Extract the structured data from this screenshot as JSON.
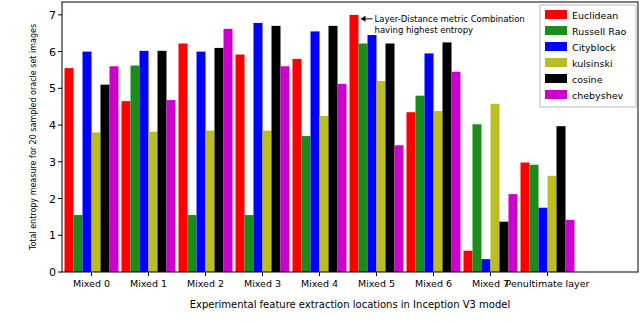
{
  "chart_data": {
    "type": "bar",
    "y_label": "Total entropy measure for 20 sampled oracle set images",
    "x_label": "Experimental feature extraction locations in Inception V3 model",
    "annotations": [
      "Layer-Distance metric Combination",
      "having highest entropy"
    ],
    "categories": [
      "Mixed 0",
      "Mixed 1",
      "Mixed 2",
      "Mixed 3",
      "Mixed 4",
      "Mixed 5",
      "Mixed 6",
      "Mixed 7",
      "Penultimate layer"
    ],
    "series": [
      {
        "name": "Euclidean",
        "color": "#ff0000",
        "values": [
          5.55,
          4.65,
          6.22,
          5.92,
          5.8,
          7.0,
          4.35,
          0.58,
          2.98
        ]
      },
      {
        "name": "Russell Rao",
        "color": "#1a8c1a",
        "values": [
          1.55,
          5.62,
          1.55,
          1.55,
          3.7,
          6.22,
          4.8,
          4.02,
          2.92
        ]
      },
      {
        "name": "Cityblock",
        "color": "#0000ff",
        "values": [
          6.0,
          6.02,
          6.0,
          6.78,
          6.55,
          6.45,
          5.95,
          0.35,
          1.75
        ]
      },
      {
        "name": "kulsinski",
        "color": "#bcbd22",
        "values": [
          3.8,
          3.82,
          3.85,
          3.85,
          4.25,
          5.2,
          4.38,
          4.58,
          2.62
        ]
      },
      {
        "name": "cosine",
        "color": "#000000",
        "values": [
          5.1,
          6.02,
          6.1,
          6.7,
          6.7,
          6.22,
          6.25,
          1.37,
          3.97
        ]
      },
      {
        "name": "chebyshev",
        "color": "#cc00cc",
        "values": [
          5.6,
          4.68,
          6.62,
          5.6,
          5.12,
          3.45,
          5.45,
          2.12,
          1.42
        ]
      }
    ],
    "ylim": [
      0,
      7.35
    ],
    "yticks": [
      0,
      1,
      2,
      3,
      4,
      5,
      6,
      7
    ],
    "grid": false,
    "legend": "upper right"
  }
}
